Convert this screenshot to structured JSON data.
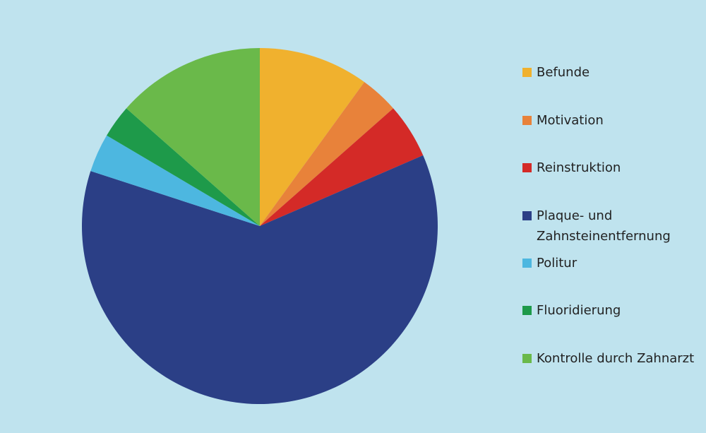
{
  "chart_data": {
    "type": "pie",
    "categories": [
      "Befunde",
      "Motivation",
      "Reinstruktion",
      "Plaque- und Zahnsteinentfernung",
      "Politur",
      "Fluoridierung",
      "Kontrolle durch Zahnarzt"
    ],
    "values": [
      10,
      3.5,
      5,
      61.5,
      3.5,
      3,
      13.5
    ],
    "colors": [
      "#f0b12e",
      "#e8823a",
      "#d42a27",
      "#2b3f86",
      "#4db7e0",
      "#1e9a4a",
      "#6ab94a"
    ],
    "legend": "right"
  }
}
